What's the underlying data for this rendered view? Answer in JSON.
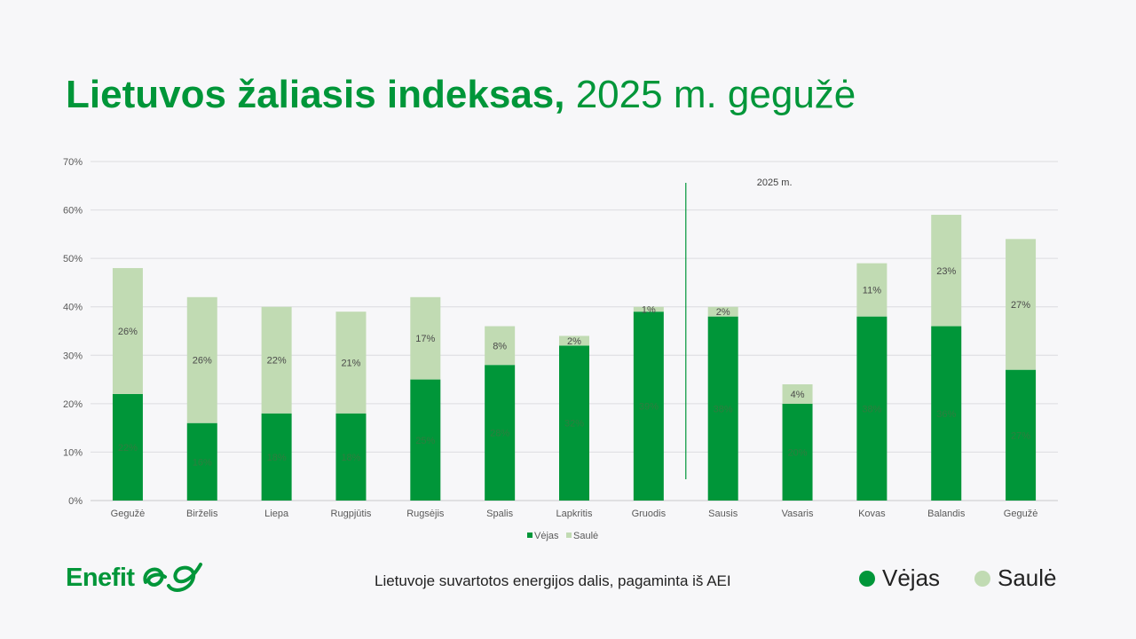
{
  "title": {
    "bold": "Lietuvos žaliasis indeksas,",
    "normal": " 2025 m. gegužė"
  },
  "footer": {
    "caption": "Lietuvoje suvartotos energijos dalis, pagaminta iš AEI",
    "legend": [
      {
        "label": "Vėjas",
        "color": "#009639"
      },
      {
        "label": "Saulė",
        "color": "#c1dbb3"
      }
    ]
  },
  "logo": {
    "text": "Enefit"
  },
  "chart_data": {
    "type": "bar",
    "stacked": true,
    "categories": [
      "Gegužė",
      "Birželis",
      "Liepa",
      "Rugpjūtis",
      "Rugsėjis",
      "Spalis",
      "Lapkritis",
      "Gruodis",
      "Sausis",
      "Vasaris",
      "Kovas",
      "Balandis",
      "Gegužė"
    ],
    "series": [
      {
        "name": "Vėjas",
        "color": "#009639",
        "values": [
          22,
          16,
          18,
          18,
          25,
          28,
          32,
          39,
          38,
          20,
          38,
          36,
          27
        ],
        "labels": [
          "22%",
          "16%",
          "18%",
          "18%",
          "25%",
          "28%",
          "32%",
          "39%",
          "38%",
          "20%",
          "38%",
          "36%",
          "27%"
        ]
      },
      {
        "name": "Saulė",
        "color": "#c1dbb3",
        "values": [
          26,
          26,
          22,
          21,
          17,
          8,
          2,
          1,
          2,
          4,
          11,
          23,
          27
        ],
        "labels": [
          "26%",
          "26%",
          "22%",
          "21%",
          "17%",
          "8%",
          "2%",
          "1%",
          "2%",
          "4%",
          "11%",
          "23%",
          "27%"
        ]
      }
    ],
    "ylim": [
      0,
      70
    ],
    "yticks": [
      "0%",
      "10%",
      "20%",
      "30%",
      "40%",
      "50%",
      "60%",
      "70%"
    ],
    "yticks_values": [
      0,
      10,
      20,
      30,
      40,
      50,
      60,
      70
    ],
    "grid": true,
    "legend_position": "bottom",
    "annotation": {
      "text": "2025 m.",
      "between": [
        "Gruodis",
        "Sausis"
      ]
    }
  }
}
